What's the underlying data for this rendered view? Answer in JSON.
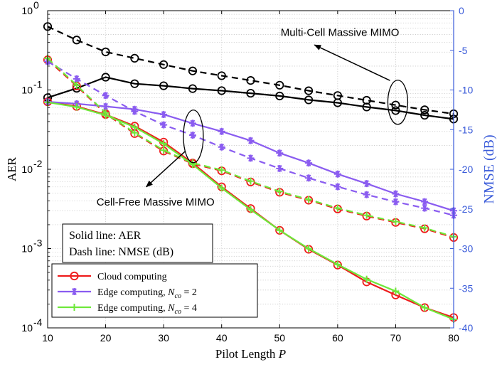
{
  "chart_data": {
    "type": "line",
    "xlabel": "Pilot Length",
    "xlabel_symbol": "P",
    "ylabel_left": "AER",
    "ylabel_right": "NMSE (dB)",
    "xlim": [
      10,
      80
    ],
    "ylim_left_log10": [
      -4,
      0
    ],
    "ylim_right": [
      -40,
      0
    ],
    "x_ticks": [
      10,
      20,
      30,
      40,
      50,
      60,
      70,
      80
    ],
    "y_left_ticks": [
      {
        "base": "10",
        "exp": "0",
        "value": 1
      },
      {
        "base": "10",
        "exp": "-1",
        "value": 0.1
      },
      {
        "base": "10",
        "exp": "-2",
        "value": 0.01
      },
      {
        "base": "10",
        "exp": "-3",
        "value": 0.001
      },
      {
        "base": "10",
        "exp": "-4",
        "value": 0.0001
      }
    ],
    "y_right_ticks": [
      0,
      -5,
      -10,
      -15,
      -20,
      -25,
      -30,
      -35,
      -40
    ],
    "x": [
      10,
      15,
      20,
      25,
      30,
      35,
      40,
      45,
      50,
      55,
      60,
      65,
      70,
      75,
      80
    ],
    "series": [
      {
        "name": "Multi-cell AER",
        "axis": "left",
        "style": "solid",
        "color": "#000000",
        "marker": "circle",
        "values": [
          0.08,
          0.105,
          0.145,
          0.12,
          0.113,
          0.104,
          0.098,
          0.091,
          0.084,
          0.075,
          0.069,
          0.061,
          0.055,
          0.048,
          0.043
        ]
      },
      {
        "name": "Multi-cell NMSE",
        "axis": "right",
        "style": "dash",
        "color": "#000000",
        "marker": "circle",
        "values": [
          -2.0,
          -3.7,
          -5.2,
          -6.0,
          -6.8,
          -7.6,
          -8.2,
          -8.8,
          -9.4,
          -10.1,
          -10.7,
          -11.3,
          -11.9,
          -12.5,
          -13.0
        ]
      },
      {
        "name": "Cloud AER",
        "axis": "left",
        "style": "solid",
        "color": "#ee1c1c",
        "marker": "circle",
        "values": [
          0.071,
          0.062,
          0.049,
          0.035,
          0.022,
          0.012,
          0.006,
          0.0032,
          0.0017,
          0.00098,
          0.00062,
          0.00038,
          0.00026,
          0.00018,
          0.000135
        ]
      },
      {
        "name": "Cloud NMSE",
        "axis": "right",
        "style": "dash",
        "color": "#ee1c1c",
        "marker": "circle",
        "values": [
          -6.2,
          -9.5,
          -13.0,
          -15.5,
          -17.7,
          -19.3,
          -20.2,
          -21.6,
          -22.9,
          -23.9,
          -25.0,
          -25.9,
          -26.7,
          -27.5,
          -28.6
        ]
      },
      {
        "name": "Edge Nco2 AER",
        "axis": "left",
        "style": "solid",
        "color": "#8a5cf0",
        "marker": "asterisk",
        "values": [
          0.071,
          0.067,
          0.062,
          0.057,
          0.049,
          0.038,
          0.03,
          0.023,
          0.016,
          0.012,
          0.0087,
          0.0066,
          0.0049,
          0.0039,
          0.003
        ]
      },
      {
        "name": "Edge Nco2 NMSE",
        "axis": "right",
        "style": "dash",
        "color": "#8a5cf0",
        "marker": "asterisk",
        "values": [
          -6.4,
          -8.6,
          -10.7,
          -12.7,
          -14.4,
          -15.7,
          -17.2,
          -18.6,
          -19.9,
          -21.1,
          -22.2,
          -23.2,
          -24.1,
          -24.9,
          -25.8
        ]
      },
      {
        "name": "Edge Nco4 AER",
        "axis": "left",
        "style": "solid",
        "color": "#6ee83a",
        "marker": "plus",
        "values": [
          0.07,
          0.061,
          0.048,
          0.034,
          0.021,
          0.0115,
          0.0058,
          0.0031,
          0.0017,
          0.001,
          0.00063,
          0.00041,
          0.00029,
          0.00018,
          0.000128
        ]
      },
      {
        "name": "Edge Nco4 NMSE",
        "axis": "right",
        "style": "dash",
        "color": "#6ee83a",
        "marker": "plus",
        "values": [
          -6.0,
          -9.4,
          -12.9,
          -15.4,
          -17.6,
          -19.2,
          -20.1,
          -21.5,
          -22.8,
          -23.8,
          -24.9,
          -25.8,
          -26.6,
          -27.4,
          -28.5
        ]
      }
    ],
    "legend": {
      "placement": "bottom-left",
      "entries": [
        {
          "label": "Cloud computing",
          "color": "#ee1c1c",
          "marker": "circle",
          "nco": ""
        },
        {
          "label": "Edge computing, ",
          "color": "#8a5cf0",
          "marker": "asterisk",
          "nco": "2"
        },
        {
          "label": "Edge computing, ",
          "color": "#6ee83a",
          "marker": "plus",
          "nco": "4"
        }
      ]
    },
    "notes": [
      "Solid line: AER",
      "Dash line: NMSE (dB)"
    ],
    "annotations": [
      "Multi-Cell Massive MIMO",
      "Cell-Free Massive MIMO"
    ],
    "grid": true
  }
}
